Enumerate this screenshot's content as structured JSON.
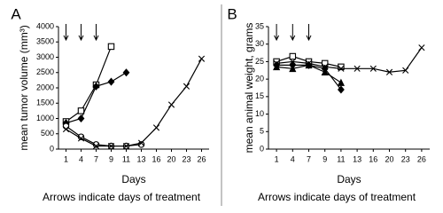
{
  "chart_data": [
    {
      "type": "line",
      "panel": "A",
      "ylabel": "mean tumor volume (mm³)",
      "xlabel": "Days",
      "annotation": "Arrows indicate days of treatment",
      "categories": [
        "1",
        "4",
        "7",
        "9",
        "11",
        "13",
        "16",
        "20",
        "23",
        "26"
      ],
      "ylim": [
        0,
        4000
      ],
      "yticks": [
        0,
        500,
        1000,
        1500,
        2000,
        2500,
        3000,
        3500,
        4000
      ],
      "series": [
        {
          "marker": "square",
          "color": "#000",
          "values": [
            900,
            1250,
            2100,
            3350,
            null,
            null,
            null,
            null,
            null,
            null
          ]
        },
        {
          "marker": "diamond",
          "color": "#000",
          "values": [
            850,
            1000,
            2050,
            2200,
            2500,
            null,
            null,
            null,
            null,
            null
          ]
        },
        {
          "marker": "circle",
          "color": "#000",
          "values": [
            750,
            400,
            150,
            100,
            100,
            150,
            null,
            null,
            null,
            null
          ]
        },
        {
          "marker": "x",
          "color": "#000",
          "values": [
            650,
            350,
            100,
            100,
            100,
            200,
            700,
            1450,
            2050,
            2950
          ]
        }
      ]
    },
    {
      "type": "line",
      "panel": "B",
      "ylabel": "mean animal weight, grams",
      "xlabel": "Days",
      "annotation": "Arrows indicate days of treatment",
      "categories": [
        "1",
        "4",
        "7",
        "9",
        "11",
        "13",
        "16",
        "20",
        "23",
        "26"
      ],
      "ylim": [
        0,
        35
      ],
      "yticks": [
        0,
        5,
        10,
        15,
        20,
        25,
        30,
        35
      ],
      "series": [
        {
          "marker": "square",
          "color": "#000",
          "values": [
            25,
            26.5,
            25,
            24.5,
            23.5,
            null,
            null,
            null,
            null,
            null
          ]
        },
        {
          "marker": "diamond",
          "color": "#000",
          "values": [
            24,
            24,
            24,
            23,
            17,
            null,
            null,
            null,
            null,
            null
          ]
        },
        {
          "marker": "triangle",
          "color": "#000",
          "values": [
            23.5,
            23,
            24,
            22,
            19,
            null,
            null,
            null,
            null,
            null
          ]
        },
        {
          "marker": "x",
          "color": "#000",
          "values": [
            24.5,
            25,
            24.5,
            23.5,
            23,
            23,
            23,
            22,
            22.5,
            29
          ]
        }
      ]
    }
  ]
}
